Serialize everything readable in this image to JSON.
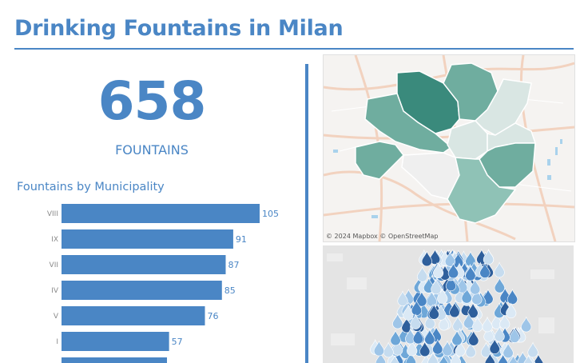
{
  "header": {
    "title": "Drinking Fountains in Milan"
  },
  "kpi": {
    "value": "658",
    "label": "FOUNTAINS"
  },
  "municipality_chart": {
    "title": "Fountains by Municipality"
  },
  "chart_data": {
    "type": "bar",
    "orientation": "horizontal",
    "title": "Fountains by Municipality",
    "categories": [
      "VIII",
      "IX",
      "VII",
      "IV",
      "V",
      "I"
    ],
    "values": [
      105,
      91,
      87,
      85,
      76,
      57
    ],
    "xlabel": "",
    "ylabel": "",
    "grid": false,
    "bar_color": "#4a86c5"
  },
  "map": {
    "attribution": "© 2024 Mapbox © OpenStreetMap",
    "palette": [
      "#3a8a7c",
      "#6fad9f",
      "#8fc2b6",
      "#d9e6e3",
      "#efefef"
    ]
  },
  "colors": {
    "accent": "#4a86c5"
  }
}
